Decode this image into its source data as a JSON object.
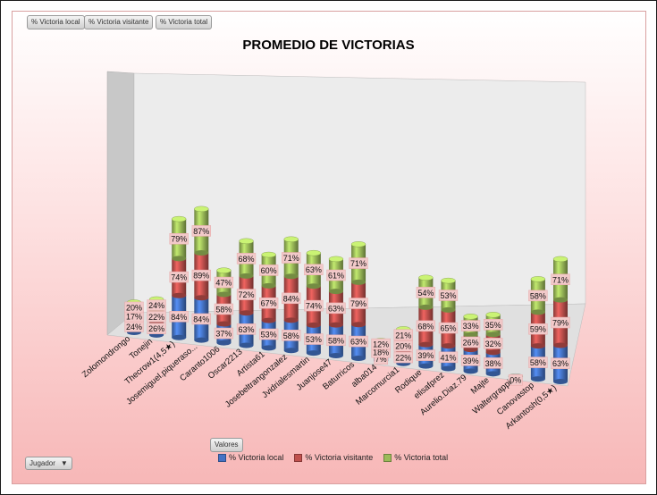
{
  "field_buttons": [
    "% Victoria local",
    "% Victoria visitante",
    "% Victoria total"
  ],
  "values_button": "Valores",
  "category_button": "Jugador",
  "category_button_arrow": "▼",
  "colors": {
    "local": "#4472c4",
    "visitante": "#c0504d",
    "total": "#9bbb59",
    "label_bg": "#f2c9c9"
  },
  "chart_data": {
    "type": "bar",
    "stacked": true,
    "three_d": true,
    "title": "PROMEDIO DE VICTORIAS",
    "xlabel": "",
    "ylabel": "",
    "legend_position": "bottom",
    "categories": [
      "Zolomondrongo",
      "Tonejin",
      "Thecrow1(4,5★)",
      "Josemiguel.piqueraso...",
      "Caranto1006",
      "Oscar2213",
      "Artista61",
      "Josebeltrangonzalez",
      "Jvidrialesmartin",
      "Juanjose47",
      "Baturricos",
      "alba014",
      "Marcomurcia1",
      "Rodique",
      "elisafprez",
      "Aurelio.Diaz.79",
      "Majte",
      "Waltergrappi",
      "Canovastop",
      "Arkantosh(0,5★)"
    ],
    "series": [
      {
        "name": "% Victoria local",
        "labels": [
          "24%",
          "26%",
          "84%",
          "84%",
          "37%",
          "63%",
          "53%",
          "58%",
          "53%",
          "58%",
          "63%",
          "7%",
          "22%",
          "39%",
          "41%",
          "39%",
          "38%",
          "0%",
          "58%",
          "63%"
        ],
        "values": [
          24,
          26,
          84,
          84,
          37,
          63,
          53,
          58,
          53,
          58,
          63,
          7,
          22,
          39,
          41,
          39,
          38,
          0,
          58,
          63
        ]
      },
      {
        "name": "% Victoria visitante",
        "labels": [
          "17%",
          "22%",
          "74%",
          "89%",
          "58%",
          "72%",
          "67%",
          "84%",
          "74%",
          "63%",
          "79%",
          "18%",
          "20%",
          "68%",
          "65%",
          "26%",
          "32%",
          "",
          "59%",
          "79%"
        ],
        "values": [
          17,
          22,
          74,
          89,
          58,
          72,
          67,
          84,
          74,
          63,
          79,
          18,
          20,
          68,
          65,
          26,
          32,
          0,
          59,
          79
        ]
      },
      {
        "name": "% Victoria total",
        "labels": [
          "20%",
          "24%",
          "79%",
          "87%",
          "47%",
          "68%",
          "60%",
          "71%",
          "63%",
          "61%",
          "71%",
          "12%",
          "21%",
          "54%",
          "53%",
          "33%",
          "35%",
          "",
          "58%",
          "71%"
        ],
        "values": [
          20,
          24,
          79,
          87,
          47,
          68,
          60,
          71,
          63,
          61,
          71,
          12,
          21,
          54,
          53,
          33,
          35,
          0,
          58,
          71
        ]
      }
    ]
  }
}
